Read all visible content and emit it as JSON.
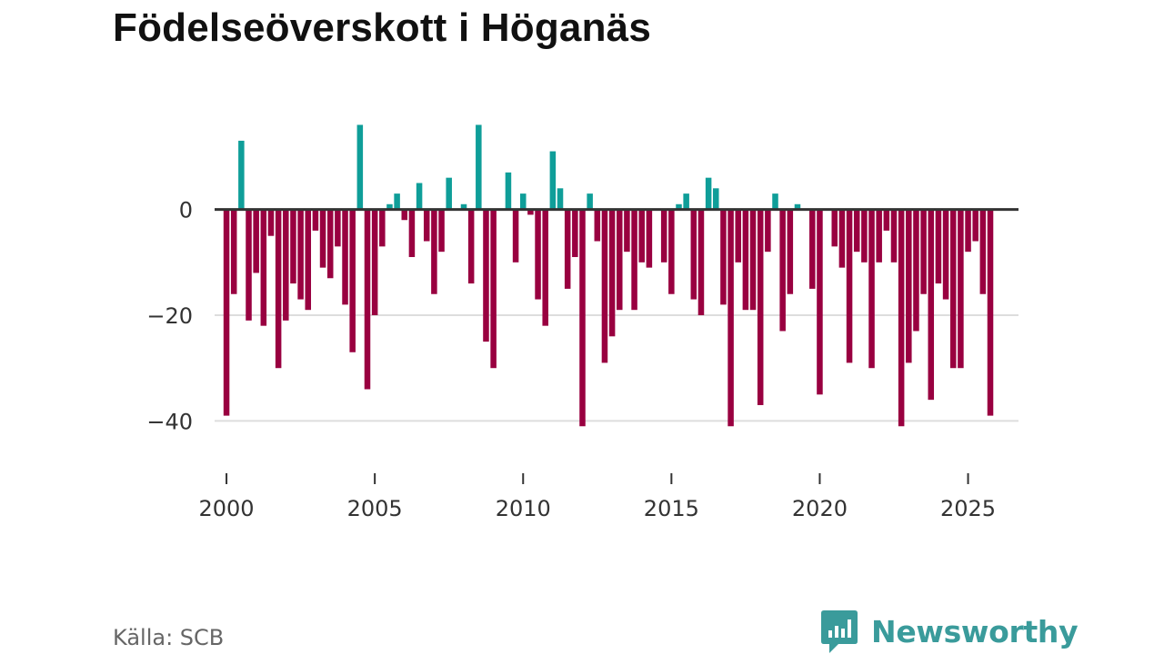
{
  "title": "Födelseöverskott i Höganäs",
  "source": "Källa: SCB",
  "brand": "Newsworthy",
  "colors": {
    "positive": "#0f9e99",
    "negative": "#990040",
    "grid": "#dddddd",
    "zero_line": "#333333",
    "axis_text": "#333333",
    "brand": "#3a9b9b"
  },
  "chart_data": {
    "type": "bar",
    "title": "Födelseöverskott i Höganäs",
    "xlabel": "",
    "ylabel": "",
    "x_start": 2000,
    "x_step_months": 3,
    "xlim": [
      1999.6,
      2026.7
    ],
    "ylim": [
      -48,
      19
    ],
    "y_ticks": [
      0,
      -20,
      -40
    ],
    "y_tick_labels": [
      "0",
      "−20",
      "−40"
    ],
    "x_ticks": [
      2000,
      2005,
      2010,
      2015,
      2020,
      2025
    ],
    "x_tick_labels": [
      "2000",
      "2005",
      "2010",
      "2015",
      "2020",
      "2025"
    ],
    "values": [
      -39,
      -16,
      13,
      -21,
      -12,
      -22,
      -5,
      -30,
      -21,
      -14,
      -17,
      -19,
      -4,
      -11,
      -13,
      -7,
      -18,
      -27,
      16,
      -34,
      -20,
      -7,
      1,
      3,
      -2,
      -9,
      5,
      -6,
      -16,
      -8,
      6,
      0,
      1,
      -14,
      16,
      -25,
      -30,
      0,
      7,
      -10,
      3,
      -1,
      -17,
      -22,
      11,
      4,
      -15,
      -9,
      -41,
      3,
      -6,
      -29,
      -24,
      -19,
      -8,
      -19,
      -10,
      -11,
      0,
      -10,
      -16,
      1,
      3,
      -17,
      -20,
      6,
      4,
      -18,
      -41,
      -10,
      -19,
      -19,
      -37,
      -8,
      3,
      -23,
      -16,
      1,
      0,
      -15,
      -35,
      0,
      -7,
      -11,
      -29,
      -8,
      -10,
      -30,
      -10,
      -4,
      -10,
      -41,
      -29,
      -23,
      -16,
      -36,
      -14,
      -17,
      -30,
      -30,
      -8,
      -6,
      -16,
      -39
    ]
  }
}
